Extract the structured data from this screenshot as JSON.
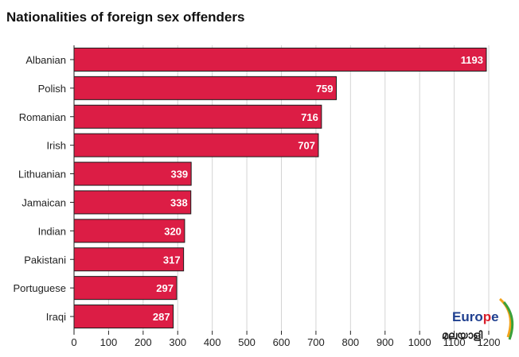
{
  "title": "Nationalities of foreign sex offenders",
  "logo": {
    "word": "Europe",
    "script": "മലയാളി"
  },
  "colors": {
    "bar_fill": "#dc1d45",
    "bar_stroke": "#1a1a1a",
    "grid": "#d4d4d4",
    "axis": "#222222",
    "logo_blue": "#1f3f8f",
    "logo_red": "#d91e2a"
  },
  "chart_data": {
    "type": "bar",
    "orientation": "horizontal",
    "title": "Nationalities of foreign sex offenders",
    "categories": [
      "Albanian",
      "Polish",
      "Romanian",
      "Irish",
      "Lithuanian",
      "Jamaican",
      "Indian",
      "Pakistani",
      "Portuguese",
      "Iraqi"
    ],
    "values": [
      1193,
      759,
      716,
      707,
      339,
      338,
      320,
      317,
      297,
      287
    ],
    "xlim": [
      0,
      1200
    ],
    "xticks": [
      0,
      100,
      200,
      300,
      400,
      500,
      600,
      700,
      800,
      900,
      1000,
      1100,
      1200
    ],
    "xlabel": "",
    "ylabel": "",
    "grid": "vertical",
    "data_labels": true
  }
}
